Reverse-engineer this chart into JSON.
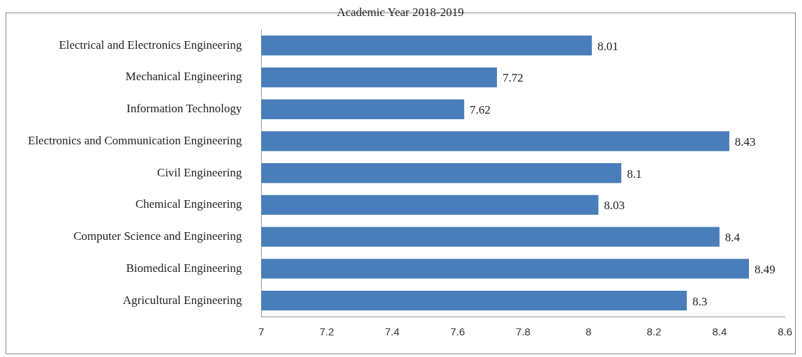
{
  "chart_data": {
    "type": "bar",
    "orientation": "horizontal",
    "title": "Academic Year 2018-2019",
    "categories": [
      "Electrical and Electronics Engineering",
      "Mechanical Engineering",
      "Information Technology",
      "Electronics and Communication Engineering",
      "Civil Engineering",
      "Chemical Engineering",
      "Computer Science and Engineering",
      "Biomedical Engineering",
      "Agricultural Engineering"
    ],
    "values": [
      8.01,
      7.72,
      7.62,
      8.43,
      8.1,
      8.03,
      8.4,
      8.49,
      8.3
    ],
    "color": "#4a7ebb",
    "xlim": [
      7,
      8.6
    ],
    "xticks": [
      7,
      7.2,
      7.4,
      7.6,
      7.8,
      8,
      8.2,
      8.4,
      8.6
    ],
    "grid": false,
    "legend": false,
    "data_labels": true
  }
}
